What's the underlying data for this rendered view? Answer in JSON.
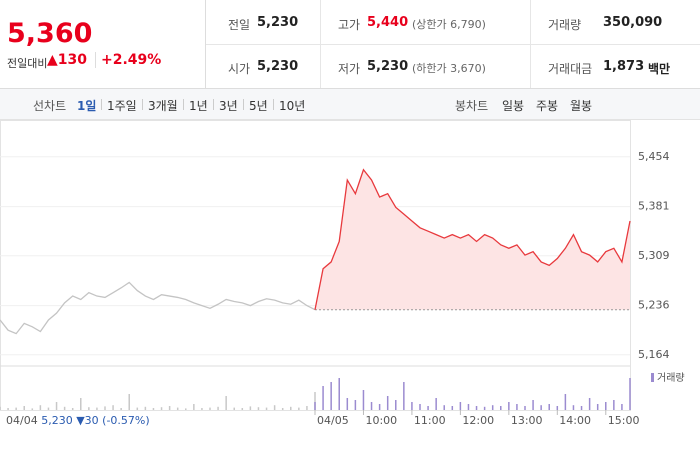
{
  "header": {
    "price": "5,360",
    "change_label": "전일대비",
    "change": "▲130",
    "rate": "+2.49%"
  },
  "info": [
    {
      "label": "전일",
      "value": "5,230"
    },
    {
      "label": "고가",
      "value": "5,440",
      "note": "(상한가 6,790)"
    },
    {
      "label": "거래량",
      "value": "350,090"
    },
    {
      "label": "시가",
      "value": "5,230"
    },
    {
      "label": "저가",
      "value": "5,230",
      "note": "(하한가 3,670)"
    },
    {
      "label": "거래대금",
      "value": "1,873",
      "note": "백만"
    }
  ],
  "tabs": {
    "line_label": "선차트",
    "line": [
      "1일",
      "1주일",
      "3개월",
      "1년",
      "3년",
      "5년",
      "10년"
    ],
    "candle_label": "봉차트",
    "candle": [
      "일봉",
      "주봉",
      "월봉"
    ]
  },
  "footer": {
    "date": "04/04",
    "price": "5,230",
    "change": "▼30",
    "rate": "(-0.57%)"
  },
  "chart_data": {
    "type": "line",
    "xlim": [
      -390,
      390
    ],
    "ylim": [
      5149,
      5505
    ],
    "yticks": [
      {
        "value": 5164,
        "label": "5,164"
      },
      {
        "value": 5236,
        "label": "5,236"
      },
      {
        "value": 5309,
        "label": "5,309"
      },
      {
        "value": 5381,
        "label": "5,381"
      },
      {
        "value": 5454,
        "label": "5,454"
      }
    ],
    "xticks": [
      {
        "value": 0,
        "label": "04/05"
      },
      {
        "value": 60,
        "label": "10:00"
      },
      {
        "value": 120,
        "label": "11:00"
      },
      {
        "value": 180,
        "label": "12:00"
      },
      {
        "value": 240,
        "label": "13:00"
      },
      {
        "value": 300,
        "label": "14:00"
      },
      {
        "value": 360,
        "label": "15:00"
      }
    ],
    "series": [
      {
        "color": "#c4c4c4",
        "x": [
          -390,
          -380,
          -370,
          -360,
          -350,
          -340,
          -330,
          -320,
          -310,
          -300,
          -290,
          -280,
          -270,
          -260,
          -250,
          -240,
          -230,
          -220,
          -210,
          -200,
          -190,
          -180,
          -170,
          -160,
          -150,
          -140,
          -130,
          -120,
          -110,
          -100,
          -90,
          -80,
          -70,
          -60,
          -50,
          -40,
          -30,
          -20,
          -10,
          0
        ],
        "values": [
          5215,
          5200,
          5195,
          5210,
          5205,
          5198,
          5215,
          5225,
          5240,
          5250,
          5245,
          5255,
          5250,
          5248,
          5255,
          5262,
          5270,
          5258,
          5250,
          5245,
          5252,
          5250,
          5248,
          5245,
          5240,
          5236,
          5232,
          5238,
          5245,
          5242,
          5240,
          5236,
          5242,
          5246,
          5244,
          5240,
          5238,
          5244,
          5236,
          5230
        ]
      },
      {
        "color": "#e8393d",
        "fill": "#fde4e4",
        "x": [
          0,
          10,
          20,
          30,
          40,
          50,
          60,
          70,
          80,
          90,
          100,
          110,
          120,
          130,
          140,
          150,
          160,
          170,
          180,
          190,
          200,
          210,
          220,
          230,
          240,
          250,
          260,
          270,
          280,
          290,
          300,
          310,
          320,
          330,
          340,
          350,
          360,
          370,
          380,
          390
        ],
        "values": [
          5230,
          5290,
          5300,
          5330,
          5420,
          5400,
          5435,
          5420,
          5395,
          5400,
          5380,
          5370,
          5360,
          5350,
          5345,
          5340,
          5335,
          5340,
          5335,
          5340,
          5330,
          5340,
          5335,
          5325,
          5320,
          5325,
          5310,
          5315,
          5300,
          5295,
          5305,
          5320,
          5340,
          5315,
          5310,
          5300,
          5315,
          5320,
          5300,
          5360
        ]
      }
    ],
    "volume": {
      "type": "bar",
      "name": "거래량",
      "ylim": [
        0,
        100
      ],
      "series": [
        {
          "color": "#c8c8c8",
          "values": [
            8,
            5,
            6,
            10,
            4,
            12,
            6,
            20,
            8,
            5,
            30,
            7,
            6,
            9,
            12,
            5,
            40,
            6,
            8,
            5,
            7,
            10,
            6,
            4,
            15,
            5,
            6,
            8,
            35,
            6,
            5,
            9,
            7,
            6,
            12,
            5,
            8,
            6,
            10,
            45
          ]
        },
        {
          "color": "#9b8bd0",
          "values": [
            20,
            60,
            70,
            80,
            30,
            25,
            50,
            20,
            15,
            35,
            25,
            70,
            20,
            15,
            10,
            30,
            12,
            10,
            20,
            15,
            10,
            8,
            12,
            10,
            20,
            15,
            10,
            25,
            12,
            15,
            10,
            40,
            12,
            10,
            30,
            15,
            20,
            25,
            15,
            80
          ]
        }
      ]
    }
  }
}
